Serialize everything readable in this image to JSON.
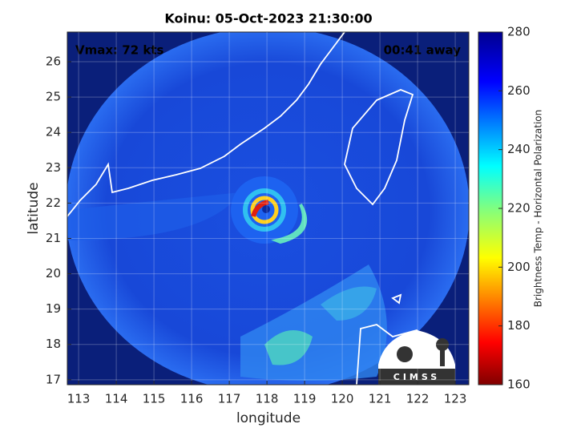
{
  "title": "Koinu: 05-Oct-2023 21:30:00",
  "annotations": {
    "vmax": "Vmax: 72 kts",
    "away": "00:41 away"
  },
  "axes": {
    "xlabel": "longitude",
    "ylabel": "latitude",
    "xlim": [
      112.7,
      123.36
    ],
    "ylim": [
      16.86,
      26.84
    ],
    "xticks": [
      113,
      114,
      115,
      116,
      117,
      118,
      119,
      120,
      121,
      122,
      123
    ],
    "yticks": [
      17,
      18,
      19,
      20,
      21,
      22,
      23,
      24,
      25,
      26
    ]
  },
  "colorbar": {
    "label": "Brightness Temp - Horizontal Polarization",
    "lim": [
      160,
      280
    ],
    "ticks": [
      160,
      180,
      200,
      220,
      240,
      260,
      280
    ]
  },
  "logo": "CIMSS"
}
